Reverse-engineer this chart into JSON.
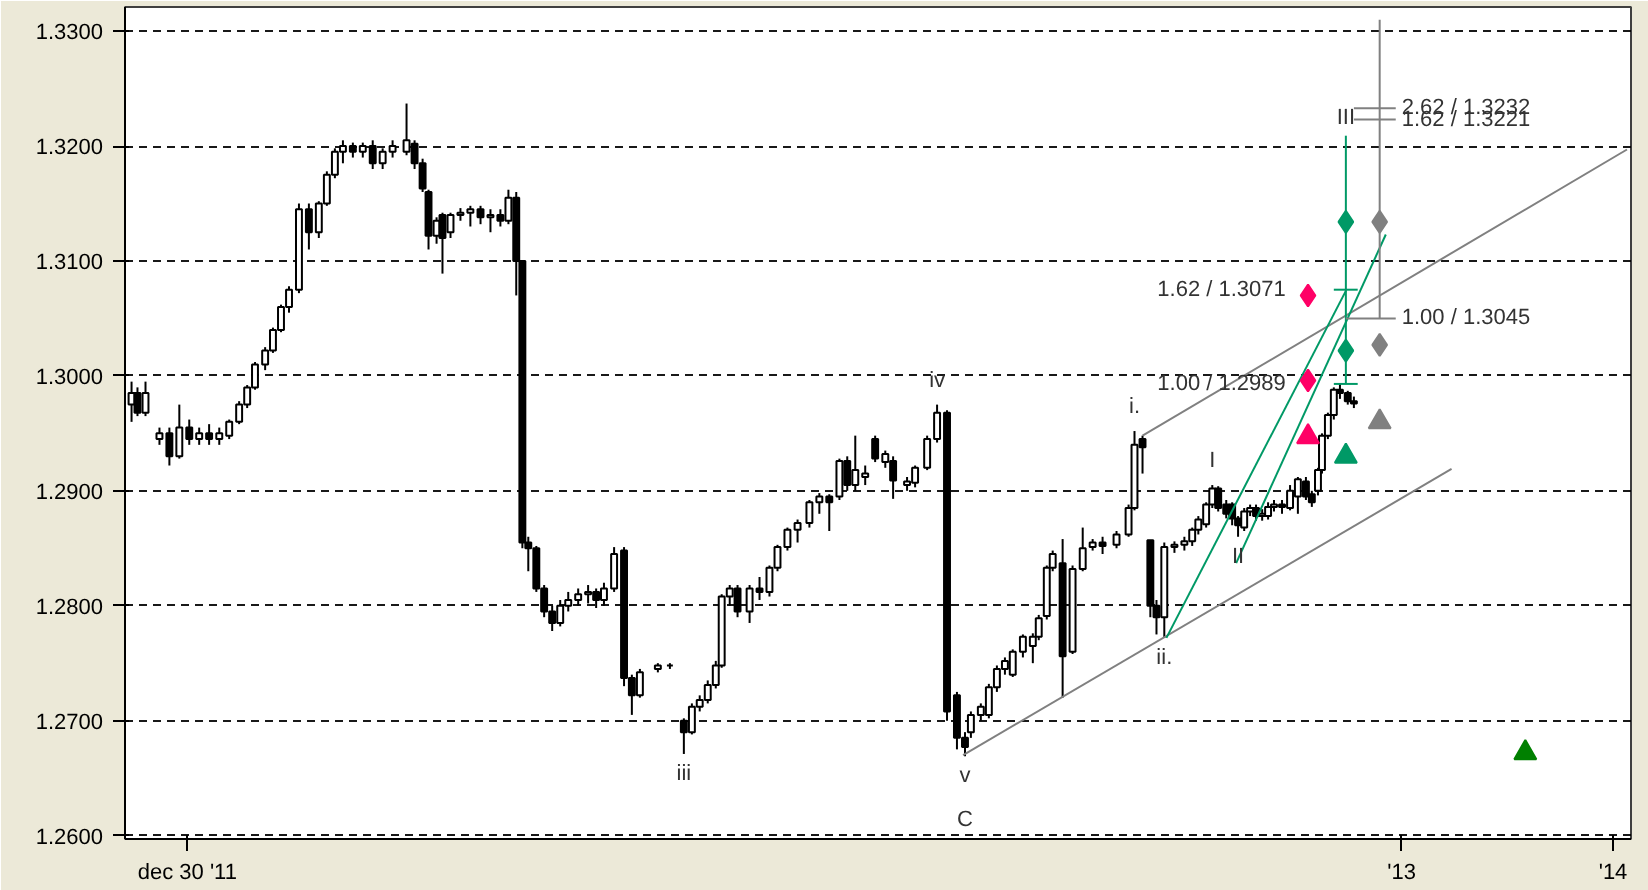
{
  "chart_data": {
    "type": "candlestick",
    "x": [
      6.991,
      7.019,
      7.057,
      7.123,
      7.17,
      7.217,
      7.264,
      7.311,
      7.358,
      7.406,
      7.453,
      7.5,
      7.538,
      7.575,
      7.623,
      7.66,
      7.698,
      7.736,
      7.783,
      7.83,
      7.877,
      7.915,
      7.953,
      7.991,
      8.038,
      8.085,
      8.132,
      8.179,
      8.226,
      8.292,
      8.33,
      8.368,
      8.396,
      8.434,
      8.462,
      8.5,
      8.547,
      8.594,
      8.642,
      8.689,
      8.736,
      8.774,
      8.811,
      8.84,
      8.868,
      8.906,
      8.943,
      8.981,
      9.019,
      9.057,
      9.104,
      9.151,
      9.189,
      9.226,
      9.274,
      9.321,
      9.358,
      9.396,
      9.481,
      9.538,
      9.604,
      9.642,
      9.679,
      9.717,
      9.755,
      9.783,
      9.821,
      9.858,
      9.915,
      9.962,
      10.009,
      10.047,
      10.094,
      10.142,
      10.198,
      10.245,
      10.292,
      10.34,
      10.377,
      10.415,
      10.462,
      10.509,
      10.557,
      10.594,
      10.66,
      10.698,
      10.755,
      10.802,
      10.849,
      10.896,
      10.934,
      10.962,
      11.009,
      11.047,
      11.085,
      11.123,
      11.16,
      11.208,
      11.255,
      11.283,
      11.321,
      11.349,
      11.396,
      11.443,
      11.491,
      11.538,
      11.585,
      11.651,
      11.708,
      11.736,
      11.774,
      11.811,
      11.84,
      11.877,
      11.925,
      11.972,
      12.009,
      12.038,
      12.075,
      12.104,
      12.132,
      12.17,
      12.198,
      12.226,
      12.255,
      12.283,
      12.311,
      12.34,
      12.368,
      12.396,
      12.434,
      12.472,
      12.509,
      12.547,
      12.575,
      12.604,
      12.623,
      12.651,
      12.679,
      12.708,
      12.745,
      12.774
    ],
    "ohlc": [
      [
        1.2975,
        1.2995,
        1.296,
        1.2985
      ],
      [
        1.2985,
        1.299,
        1.2965,
        1.2968
      ],
      [
        1.2968,
        1.2995,
        1.2965,
        1.2985
      ],
      [
        1.2945,
        1.2955,
        1.294,
        1.295
      ],
      [
        1.295,
        1.2955,
        1.2922,
        1.293
      ],
      [
        1.293,
        1.2975,
        1.2928,
        1.2955
      ],
      [
        1.2955,
        1.2962,
        1.294,
        1.2945
      ],
      [
        1.2945,
        1.2955,
        1.294,
        1.295
      ],
      [
        1.295,
        1.2958,
        1.294,
        1.2945
      ],
      [
        1.2945,
        1.2955,
        1.294,
        1.295
      ],
      [
        1.2948,
        1.2962,
        1.2945,
        1.296
      ],
      [
        1.296,
        1.2978,
        1.2958,
        1.2975
      ],
      [
        1.2975,
        1.2992,
        1.2972,
        1.299
      ],
      [
        1.299,
        1.3012,
        1.2988,
        1.301
      ],
      [
        1.301,
        1.3025,
        1.3005,
        1.3022
      ],
      [
        1.3022,
        1.3042,
        1.302,
        1.304
      ],
      [
        1.304,
        1.3062,
        1.3038,
        1.306
      ],
      [
        1.306,
        1.3078,
        1.3055,
        1.3075
      ],
      [
        1.3075,
        1.315,
        1.3072,
        1.3145
      ],
      [
        1.3145,
        1.315,
        1.311,
        1.3125
      ],
      [
        1.3125,
        1.3152,
        1.312,
        1.315
      ],
      [
        1.315,
        1.3178,
        1.3148,
        1.3175
      ],
      [
        1.3175,
        1.3198,
        1.3172,
        1.3195
      ],
      [
        1.3195,
        1.3205,
        1.3185,
        1.32
      ],
      [
        1.32,
        1.3203,
        1.319,
        1.3195
      ],
      [
        1.3195,
        1.3203,
        1.319,
        1.32
      ],
      [
        1.32,
        1.3205,
        1.318,
        1.3185
      ],
      [
        1.3185,
        1.3198,
        1.318,
        1.3195
      ],
      [
        1.3195,
        1.3205,
        1.319,
        1.32
      ],
      [
        1.3195,
        1.3237,
        1.3192,
        1.3205
      ],
      [
        1.3202,
        1.3205,
        1.318,
        1.3185
      ],
      [
        1.3185,
        1.3189,
        1.316,
        1.3163
      ],
      [
        1.316,
        1.3162,
        1.311,
        1.3122
      ],
      [
        1.3122,
        1.3138,
        1.3115,
        1.3135
      ],
      [
        1.314,
        1.3142,
        1.3089,
        1.312
      ],
      [
        1.3125,
        1.3142,
        1.312,
        1.314
      ],
      [
        1.314,
        1.3146,
        1.3135,
        1.3142
      ],
      [
        1.3142,
        1.3148,
        1.313,
        1.3145
      ],
      [
        1.3145,
        1.3148,
        1.3132,
        1.3138
      ],
      [
        1.3138,
        1.3145,
        1.3125,
        1.314
      ],
      [
        1.314,
        1.3145,
        1.313,
        1.3135
      ],
      [
        1.3135,
        1.3162,
        1.3132,
        1.3155
      ],
      [
        1.3155,
        1.316,
        1.307,
        1.31
      ],
      [
        1.31,
        1.31,
        1.285,
        1.2855
      ],
      [
        1.2855,
        1.286,
        1.283,
        1.285
      ],
      [
        1.285,
        1.2852,
        1.2812,
        1.2815
      ],
      [
        1.2815,
        1.2818,
        1.279,
        1.2795
      ],
      [
        1.2795,
        1.28,
        1.2778,
        1.2785
      ],
      [
        1.2785,
        1.2805,
        1.2782,
        1.28
      ],
      [
        1.28,
        1.2812,
        1.2795,
        1.2805
      ],
      [
        1.2805,
        1.2815,
        1.28,
        1.281
      ],
      [
        1.281,
        1.2818,
        1.2802,
        1.2812
      ],
      [
        1.2812,
        1.2815,
        1.2798,
        1.2805
      ],
      [
        1.2805,
        1.282,
        1.28,
        1.2815
      ],
      [
        1.2815,
        1.2851,
        1.2812,
        1.2845
      ],
      [
        1.2848,
        1.2851,
        1.273,
        1.2737
      ],
      [
        1.2737,
        1.274,
        1.2705,
        1.2722
      ],
      [
        1.2722,
        1.2745,
        1.272,
        1.2742
      ],
      [
        1.2745,
        1.275,
        1.2742,
        1.2748
      ],
      [
        1.2748,
        1.275,
        1.2745,
        1.2748
      ],
      [
        1.27,
        1.2702,
        1.2671,
        1.269
      ],
      [
        1.269,
        1.2715,
        1.2688,
        1.2712
      ],
      [
        1.2712,
        1.2722,
        1.2708,
        1.2718
      ],
      [
        1.2718,
        1.2735,
        1.2715,
        1.2731
      ],
      [
        1.2731,
        1.2752,
        1.2728,
        1.2748
      ],
      [
        1.2748,
        1.281,
        1.2746,
        1.2808
      ],
      [
        1.2808,
        1.2818,
        1.28,
        1.2815
      ],
      [
        1.2815,
        1.2818,
        1.279,
        1.2795
      ],
      [
        1.2795,
        1.2818,
        1.2785,
        1.2815
      ],
      [
        1.2815,
        1.2825,
        1.2805,
        1.2812
      ],
      [
        1.2812,
        1.2835,
        1.2808,
        1.2833
      ],
      [
        1.2833,
        1.2853,
        1.283,
        1.2851
      ],
      [
        1.2851,
        1.2868,
        1.2848,
        1.2866
      ],
      [
        1.2866,
        1.2875,
        1.2855,
        1.2872
      ],
      [
        1.2872,
        1.2892,
        1.2868,
        1.289
      ],
      [
        1.289,
        1.2898,
        1.288,
        1.2895
      ],
      [
        1.2895,
        1.2897,
        1.2865,
        1.289
      ],
      [
        1.2895,
        1.2928,
        1.2892,
        1.2926
      ],
      [
        1.2926,
        1.293,
        1.29,
        1.2905
      ],
      [
        1.2905,
        1.2948,
        1.29,
        1.2918
      ],
      [
        1.2912,
        1.2922,
        1.2905,
        1.2915
      ],
      [
        1.2945,
        1.2948,
        1.2925,
        1.2928
      ],
      [
        1.2925,
        1.2935,
        1.292,
        1.2932
      ],
      [
        1.2926,
        1.293,
        1.2893,
        1.2909
      ],
      [
        1.2905,
        1.2912,
        1.29,
        1.2908
      ],
      [
        1.2907,
        1.2922,
        1.2903,
        1.292
      ],
      [
        1.292,
        1.2948,
        1.2918,
        1.2945
      ],
      [
        1.2945,
        1.2975,
        1.2942,
        1.2968
      ],
      [
        1.2968,
        1.297,
        1.27,
        1.2708
      ],
      [
        1.2722,
        1.2725,
        1.2675,
        1.2685
      ],
      [
        1.2685,
        1.269,
        1.2669,
        1.2677
      ],
      [
        1.269,
        1.2708,
        1.2685,
        1.2705
      ],
      [
        1.2705,
        1.2715,
        1.27,
        1.2712
      ],
      [
        1.2705,
        1.2732,
        1.2702,
        1.2729
      ],
      [
        1.2729,
        1.2748,
        1.2725,
        1.2745
      ],
      [
        1.2745,
        1.2755,
        1.274,
        1.2752
      ],
      [
        1.274,
        1.2762,
        1.2738,
        1.276
      ],
      [
        1.276,
        1.2775,
        1.2755,
        1.2773
      ],
      [
        1.2765,
        1.2776,
        1.275,
        1.2773
      ],
      [
        1.2773,
        1.2792,
        1.277,
        1.2789
      ],
      [
        1.2791,
        1.2835,
        1.2788,
        1.2833
      ],
      [
        1.2833,
        1.2848,
        1.283,
        1.2845
      ],
      [
        1.2837,
        1.2858,
        1.272,
        1.2756
      ],
      [
        1.276,
        1.2835,
        1.2758,
        1.2832
      ],
      [
        1.2832,
        1.2868,
        1.283,
        1.285
      ],
      [
        1.2851,
        1.2858,
        1.2848,
        1.2855
      ],
      [
        1.2855,
        1.286,
        1.2845,
        1.2852
      ],
      [
        1.2853,
        1.2865,
        1.285,
        1.2862
      ],
      [
        1.2862,
        1.2888,
        1.286,
        1.2885
      ],
      [
        1.2885,
        1.2952,
        1.2883,
        1.294
      ],
      [
        1.2945,
        1.2948,
        1.2915,
        1.2938
      ],
      [
        1.2857,
        1.2857,
        1.279,
        1.28
      ],
      [
        1.28,
        1.2805,
        1.2775,
        1.279
      ],
      [
        1.279,
        1.2855,
        1.2772,
        1.2851
      ],
      [
        1.2851,
        1.2856,
        1.2846,
        1.2853
      ],
      [
        1.2853,
        1.286,
        1.2848,
        1.2856
      ],
      [
        1.2856,
        1.2868,
        1.2852,
        1.2866
      ],
      [
        1.2866,
        1.2878,
        1.2862,
        1.2875
      ],
      [
        1.2871,
        1.289,
        1.2868,
        1.2888
      ],
      [
        1.2888,
        1.2905,
        1.2885,
        1.2902
      ],
      [
        1.2902,
        1.2904,
        1.2882,
        1.2885
      ],
      [
        1.2888,
        1.2892,
        1.2876,
        1.288
      ],
      [
        1.2888,
        1.289,
        1.287,
        1.2876
      ],
      [
        1.2876,
        1.2878,
        1.286,
        1.287
      ],
      [
        1.2868,
        1.2885,
        1.2865,
        1.2882
      ],
      [
        1.2882,
        1.2888,
        1.2878,
        1.2885
      ],
      [
        1.2885,
        1.2888,
        1.2874,
        1.2878
      ],
      [
        1.2878,
        1.2884,
        1.2874,
        1.288
      ],
      [
        1.2878,
        1.289,
        1.2875,
        1.2886
      ],
      [
        1.2886,
        1.2892,
        1.2882,
        1.2888
      ],
      [
        1.2888,
        1.2892,
        1.288,
        1.2886
      ],
      [
        1.2885,
        1.2905,
        1.2883,
        1.29
      ],
      [
        1.2895,
        1.2912,
        1.288,
        1.291
      ],
      [
        1.2908,
        1.2912,
        1.2892,
        1.2895
      ],
      [
        1.2897,
        1.29,
        1.2886,
        1.289
      ],
      [
        1.29,
        1.292,
        1.2896,
        1.2918
      ],
      [
        1.2918,
        1.295,
        1.2915,
        1.2948
      ],
      [
        1.2948,
        1.2968,
        1.2945,
        1.2966
      ],
      [
        1.2966,
        1.299,
        1.2962,
        1.2988
      ],
      [
        1.2988,
        1.2993,
        1.298,
        1.2985
      ],
      [
        1.2985,
        1.2987,
        1.2975,
        1.2978
      ],
      [
        1.2978,
        1.2982,
        1.2972,
        1.2976
      ]
    ],
    "series": [
      {
        "type": "line",
        "color": "#808080",
        "x": [
          10.925,
          13.236
        ],
        "values": [
          1.267,
          1.2919
        ]
      },
      {
        "type": "line",
        "color": "#808080",
        "x": [
          11.774,
          14.066
        ],
        "values": [
          1.2948,
          1.3197
        ]
      },
      {
        "type": "line",
        "color": "#009966",
        "x": [
          11.887,
          12.736
        ],
        "values": [
          1.2772,
          1.3074
        ]
      },
      {
        "type": "line",
        "color": "#009966",
        "x": [
          12.217,
          12.925
        ],
        "values": [
          1.2837,
          1.3123
        ]
      },
      {
        "type": "line",
        "color": "#009966",
        "x": [
          12.736,
          12.736
        ],
        "values": [
          1.3209,
          1.2993
        ]
      },
      {
        "type": "line",
        "color": "#009966",
        "x": [
          12.679,
          12.792
        ],
        "values": [
          1.3075,
          1.3075
        ]
      },
      {
        "type": "line",
        "color": "#009966",
        "x": [
          12.679,
          12.792
        ],
        "values": [
          1.2993,
          1.2993
        ]
      },
      {
        "type": "line",
        "color": "#808080",
        "x": [
          12.896,
          12.896
        ],
        "values": [
          1.331,
          1.305
        ]
      },
      {
        "type": "line",
        "color": "#808080",
        "x": [
          12.774,
          12.972
        ],
        "values": [
          1.3233,
          1.3233
        ]
      },
      {
        "type": "line",
        "color": "#808080",
        "x": [
          12.774,
          12.972
        ],
        "values": [
          1.3223,
          1.3223
        ]
      },
      {
        "type": "line",
        "color": "#808080",
        "x": [
          12.736,
          12.972
        ],
        "values": [
          1.305,
          1.305
        ]
      },
      {
        "type": "scatter",
        "marker": "diamond",
        "color": "#009966",
        "x": [
          12.736,
          12.736
        ],
        "values": [
          1.3134,
          1.3022
        ]
      },
      {
        "type": "scatter",
        "marker": "diamond",
        "color": "#808080",
        "x": [
          12.896,
          12.896
        ],
        "values": [
          1.3134,
          1.3027
        ]
      },
      {
        "type": "scatter",
        "marker": "diamond",
        "color": "#ff0066",
        "x": [
          12.557,
          12.557
        ],
        "values": [
          1.307,
          1.2996
        ]
      },
      {
        "type": "scatter",
        "marker": "triangle",
        "color": "#ff0066",
        "x": [
          12.557
        ],
        "values": [
          1.2947
        ]
      },
      {
        "type": "scatter",
        "marker": "triangle",
        "color": "#009966",
        "x": [
          12.736
        ],
        "values": [
          1.293
        ]
      },
      {
        "type": "scatter",
        "marker": "triangle",
        "color": "#808080",
        "x": [
          12.896
        ],
        "values": [
          1.296
        ]
      },
      {
        "type": "scatter",
        "marker": "triangle",
        "color": "#008000",
        "x": [
          13.585
        ],
        "values": [
          1.2672
        ]
      }
    ],
    "annotations": [
      {
        "text": "iii",
        "x": 9.604,
        "y": 1.2671
      },
      {
        "text": "iv",
        "x": 10.802,
        "y": 1.2975
      },
      {
        "text": "v",
        "x": 10.934,
        "y": 1.2669
      },
      {
        "text": "C",
        "x": 10.934,
        "y": 1.2669
      },
      {
        "text": "i.",
        "x": 11.736,
        "y": 1.2952
      },
      {
        "text": "ii.",
        "x": 11.877,
        "y": 1.2772
      },
      {
        "text": "I",
        "x": 12.104,
        "y": 1.2905
      },
      {
        "text": "II",
        "x": 12.226,
        "y": 1.286
      },
      {
        "text": "III",
        "x": 12.736,
        "y": 1.3209
      },
      {
        "text": "1.62 / 1.3071",
        "x": 12.679,
        "y": 1.3075
      },
      {
        "text": "1.00 / 1.2989",
        "x": 12.679,
        "y": 1.2993
      },
      {
        "text": "2.62 / 1.3232",
        "x": 12.972,
        "y": 1.3233
      },
      {
        "text": "1.62 / 1.3221",
        "x": 12.972,
        "y": 1.3223
      },
      {
        "text": "1.00 / 1.3045",
        "x": 12.972,
        "y": 1.305
      }
    ],
    "xlim": [
      6.96,
      14.085
    ],
    "xticks": [
      {
        "value": 7.255,
        "label": "dec 30 '11"
      },
      {
        "value": 13,
        "label": "'13"
      },
      {
        "value": 14,
        "label": "'14"
      }
    ],
    "ylim": [
      1.2597,
      1.3321
    ],
    "yticks": [
      {
        "value": 1.26,
        "label": "1.2600"
      },
      {
        "value": 1.27,
        "label": "1.2700"
      },
      {
        "value": 1.28,
        "label": "1.2800"
      },
      {
        "value": 1.29,
        "label": "1.2900"
      },
      {
        "value": 1.3,
        "label": "1.3000"
      },
      {
        "value": 1.31,
        "label": "1.3100"
      },
      {
        "value": 1.32,
        "label": "1.3200"
      },
      {
        "value": 1.33,
        "label": "1.3300"
      }
    ],
    "grid": "y"
  }
}
